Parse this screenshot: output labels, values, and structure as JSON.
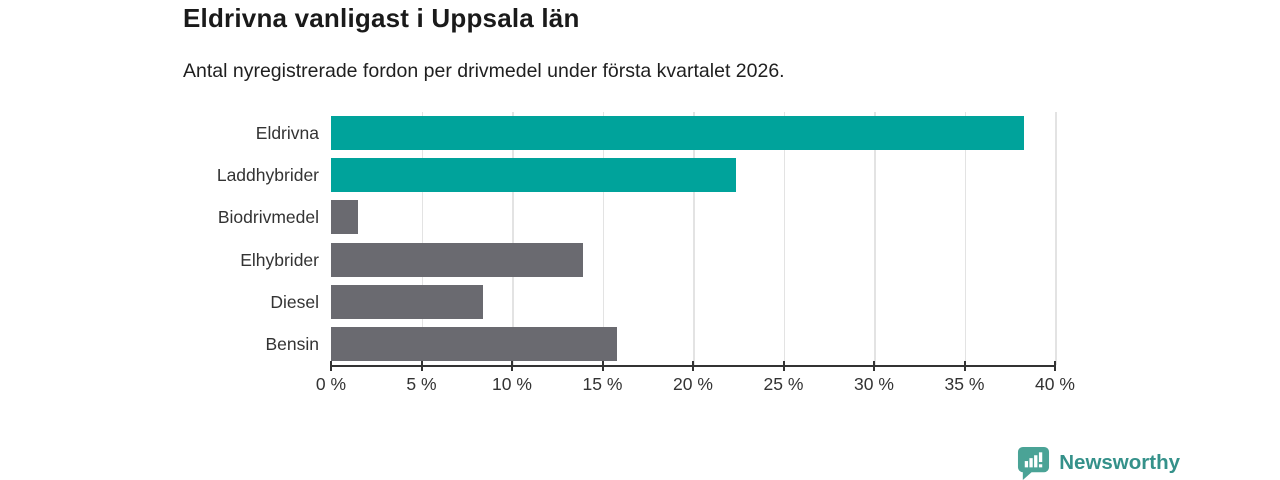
{
  "title": "Eldrivna vanligast i Uppsala län",
  "subtitle": "Antal nyregistrerade fordon per drivmedel under första kvartalet 2026.",
  "branding": {
    "logo_text": "Newsworthy",
    "logo_icon": "bar-chart-speech-bubble-icon",
    "logo_text_color": "#35918a",
    "logo_icon_color": "#4aa396"
  },
  "chart_data": {
    "type": "bar",
    "orientation": "horizontal",
    "title": "Eldrivna vanligast i Uppsala län",
    "subtitle": "Antal nyregistrerade fordon per drivmedel under första kvartalet 2026.",
    "categories": [
      "Eldrivna",
      "Laddhybrider",
      "Biodrivmedel",
      "Elhybrider",
      "Diesel",
      "Bensin"
    ],
    "values": [
      38.3,
      22.4,
      1.5,
      13.9,
      8.4,
      15.8
    ],
    "unit": "%",
    "bar_colors": [
      "#00a39b",
      "#00a39b",
      "#6a6a70",
      "#6a6a70",
      "#6a6a70",
      "#6a6a70"
    ],
    "highlight_color": "#00a39b",
    "default_color": "#6a6a70",
    "xlim": [
      0,
      40
    ],
    "x_tick_values": [
      0,
      5,
      10,
      15,
      20,
      25,
      30,
      35,
      40
    ],
    "x_tick_labels": [
      "0 %",
      "5 %",
      "10 %",
      "15 %",
      "20 %",
      "25 %",
      "30 %",
      "35 %",
      "40 %"
    ],
    "grid": true,
    "gridline_color": "#e3e3e3",
    "axis_color": "#333333",
    "label_color": "#333333",
    "legend": "none"
  }
}
